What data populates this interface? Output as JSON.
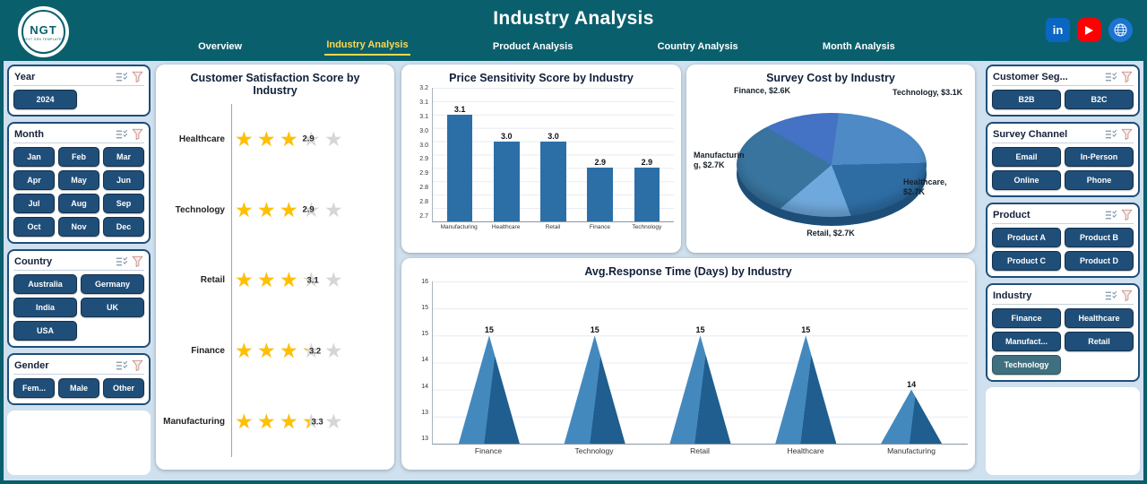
{
  "app": {
    "title": "Industry Analysis"
  },
  "logo": {
    "abbr": "NGT",
    "name": "NEXT GEN TEMPLATES"
  },
  "nav": {
    "tabs": [
      "Overview",
      "Industry Analysis",
      "Product Analysis",
      "Country Analysis",
      "Month Analysis"
    ],
    "active_index": 1
  },
  "social": {
    "linkedin_label": "in"
  },
  "colors": {
    "header_teal": "#0A5F6D",
    "accent_yellow": "#FFD84D",
    "button_navy": "#1F4E79",
    "button_selected": "#40707F",
    "star_gold": "#FFC000"
  },
  "filters_left": [
    {
      "title": "Year",
      "cols": 2,
      "items": [
        "2024"
      ]
    },
    {
      "title": "Month",
      "cols": 3,
      "items": [
        "Jan",
        "Feb",
        "Mar",
        "Apr",
        "May",
        "Jun",
        "Jul",
        "Aug",
        "Sep",
        "Oct",
        "Nov",
        "Dec"
      ]
    },
    {
      "title": "Country",
      "cols": 2,
      "items": [
        "Australia",
        "Germany",
        "India",
        "UK",
        "USA"
      ]
    },
    {
      "title": "Gender",
      "cols": 3,
      "items": [
        "Fem...",
        "Male",
        "Other"
      ]
    }
  ],
  "filters_right": [
    {
      "title": "Customer Seg...",
      "cols": 2,
      "items": [
        "B2B",
        "B2C"
      ]
    },
    {
      "title": "Survey Channel",
      "cols": 2,
      "items": [
        "Email",
        "In-Person",
        "Online",
        "Phone"
      ]
    },
    {
      "title": "Product",
      "cols": 2,
      "items": [
        "Product A",
        "Product B",
        "Product C",
        "Product D"
      ]
    },
    {
      "title": "Industry",
      "cols": 2,
      "items": [
        "Finance",
        "Healthcare",
        "Manufact...",
        "Retail",
        "Technology"
      ],
      "selected": "Technology"
    }
  ],
  "chart_data": [
    {
      "type": "stars",
      "title": "Customer Satisfaction Score by Industry",
      "categories": [
        "Healthcare",
        "Technology",
        "Retail",
        "Finance",
        "Manufacturing"
      ],
      "values": [
        2.9,
        2.9,
        3.1,
        3.2,
        3.3
      ],
      "max_stars": 5
    },
    {
      "type": "bar",
      "title": "Price Sensitivity Score by Industry",
      "categories": [
        "Manufacturing",
        "Healthcare",
        "Retail",
        "Finance",
        "Technology"
      ],
      "values": [
        3.1,
        3.0,
        3.0,
        2.9,
        2.9
      ],
      "labels": [
        "3.1",
        "3.0",
        "3.0",
        "2.9",
        "2.9"
      ],
      "ylim": [
        2.7,
        3.2
      ],
      "yticks": [
        "3.2",
        "3.1",
        "3.1",
        "3.0",
        "3.0",
        "2.9",
        "2.9",
        "2.8",
        "2.8",
        "2.7"
      ],
      "bar_color": "#2B6FA6"
    },
    {
      "type": "pie",
      "title": "Survey Cost by Industry",
      "start_angle": -60,
      "slices": [
        {
          "label": "Finance",
          "value": 2.6,
          "value_label": "$2.6K",
          "color": "#4472C4"
        },
        {
          "label": "Technology",
          "value": 3.1,
          "value_label": "$3.1K",
          "color": "#4E8BC6"
        },
        {
          "label": "Healthcare",
          "value": 2.7,
          "value_label": "$2.7K",
          "color": "#2E6DA4"
        },
        {
          "label": "Retail",
          "value": 2.7,
          "value_label": "$2.7K",
          "color": "#6FA8DC"
        },
        {
          "label": "Manufacturing",
          "value": 2.7,
          "value_label": "$2.7K",
          "color": "#38749E"
        }
      ]
    },
    {
      "type": "cone",
      "title": "Avg.Response Time (Days) by Industry",
      "categories": [
        "Finance",
        "Technology",
        "Retail",
        "Healthcare",
        "Manufacturing"
      ],
      "values": [
        15,
        15,
        15,
        15,
        14
      ],
      "labels": [
        "15",
        "15",
        "15",
        "15",
        "14"
      ],
      "ylim": [
        13,
        16
      ],
      "yticks": [
        "16",
        "15",
        "15",
        "14",
        "14",
        "13",
        "13"
      ],
      "cone_colors": [
        "#4489BE",
        "#1F5E8E"
      ]
    }
  ]
}
